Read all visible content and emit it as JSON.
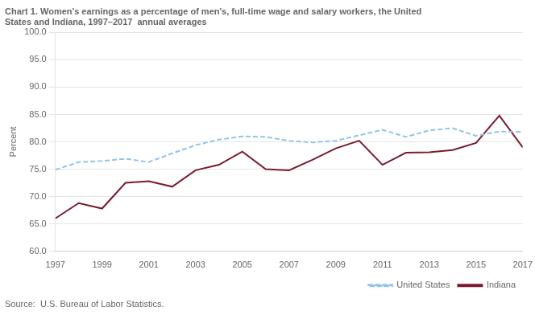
{
  "chart_data": {
    "type": "line",
    "title": [
      "Chart 1. Women's earnings as a percentage of men's, full-time wage and salary workers, the United",
      "States and Indiana, 1997–2017  annual averages"
    ],
    "y_label": "Percent",
    "source": "Source:  U.S. Bureau of Labor Statistics.",
    "x": [
      1997,
      1998,
      1999,
      2000,
      2001,
      2002,
      2003,
      2004,
      2005,
      2006,
      2007,
      2008,
      2009,
      2010,
      2011,
      2012,
      2013,
      2014,
      2015,
      2016,
      2017
    ],
    "series": [
      {
        "name": "United States",
        "color": "#92c5e8",
        "line_style": "dashed",
        "values": [
          74.9,
          76.3,
          76.5,
          76.9,
          76.3,
          77.9,
          79.4,
          80.4,
          81.0,
          80.9,
          80.2,
          79.9,
          80.2,
          81.2,
          82.2,
          80.9,
          82.1,
          82.5,
          81.1,
          81.9,
          81.8
        ]
      },
      {
        "name": "Indiana",
        "color": "#7b1a2e",
        "line_style": "solid",
        "values": [
          66.0,
          68.8,
          67.8,
          72.5,
          72.8,
          71.8,
          74.8,
          75.8,
          78.2,
          75.0,
          74.8,
          76.7,
          78.8,
          80.2,
          75.8,
          78.0,
          78.1,
          78.5,
          79.8,
          84.8,
          79.0
        ]
      }
    ],
    "xlim": [
      1997,
      2017
    ],
    "xticks": [
      1997,
      1999,
      2001,
      2003,
      2005,
      2007,
      2009,
      2011,
      2013,
      2015,
      2017
    ],
    "ylim": [
      60.0,
      100.0
    ],
    "yticks": [
      {
        "value": 60.0,
        "label": "60.0"
      },
      {
        "value": 65.0,
        "label": "65.0"
      },
      {
        "value": 70.0,
        "label": "70.0"
      },
      {
        "value": 75.0,
        "label": "75.0"
      },
      {
        "value": 80.0,
        "label": "80.0"
      },
      {
        "value": 85.0,
        "label": "85.0"
      },
      {
        "value": 90.0,
        "label": "90.0"
      },
      {
        "value": 95.0,
        "label": "95.0"
      },
      {
        "value": 100.0,
        "label": "100.0"
      }
    ],
    "grid": "y",
    "legend": "lower right"
  }
}
